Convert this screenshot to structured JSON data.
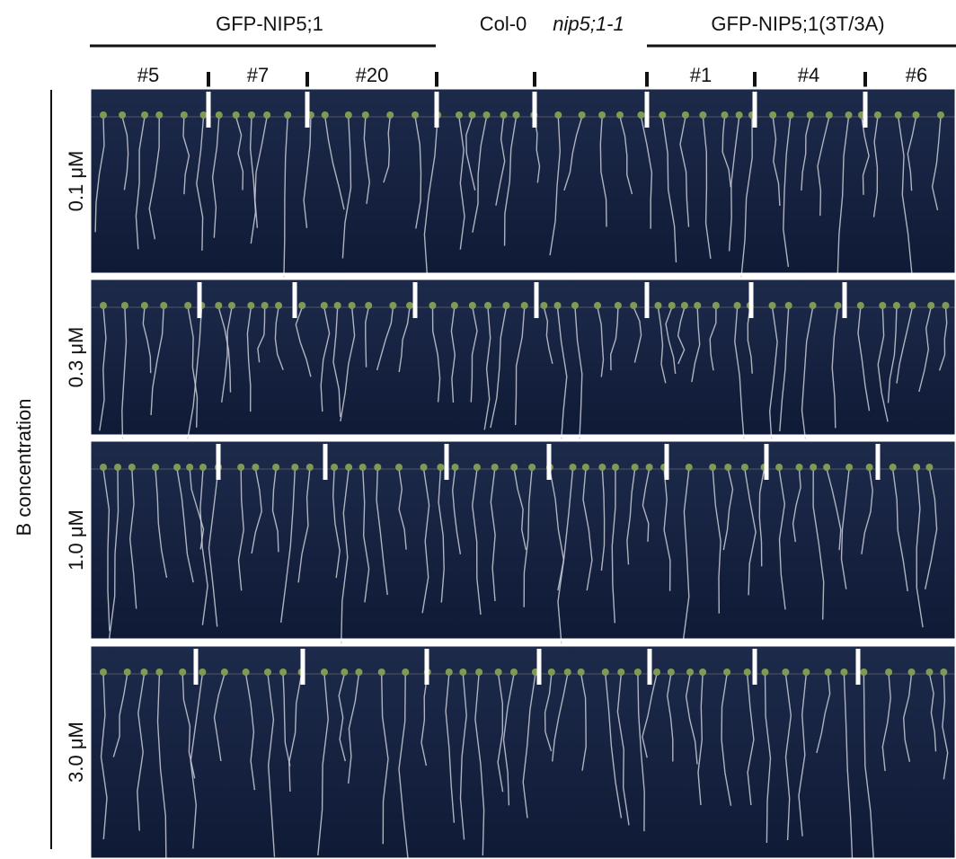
{
  "header": {
    "groups": [
      "GFP-NIP5;1",
      "Col-0",
      "nip5;1-1",
      "GFP-NIP5;1(3T/3A)"
    ],
    "lines": [
      "#5",
      "#7",
      "#20",
      "#1",
      "#4",
      "#6"
    ]
  },
  "y_axis": {
    "title": "B concentration",
    "rows": [
      "0.1 μM",
      "0.3 μM",
      "1.0 μM",
      "3.0 μM"
    ]
  }
}
